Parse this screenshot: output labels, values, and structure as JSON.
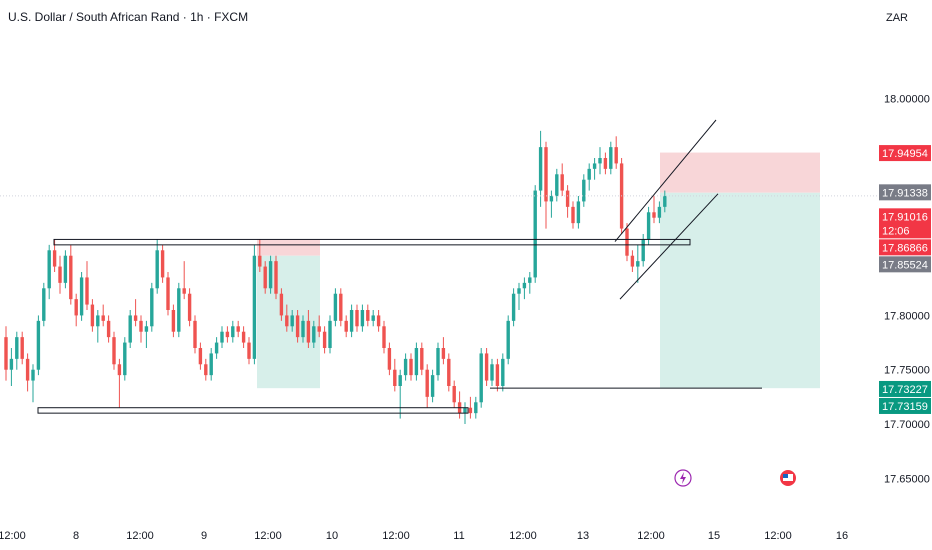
{
  "header": {
    "title": "U.S. Dollar / South African Rand · 1h · FXCM",
    "currency": "ZAR"
  },
  "colors": {
    "up": "#26a69a",
    "down": "#ef5350",
    "stop_zone": "#f8d6d8",
    "target_zone": "#d7efea",
    "red_tag": "#f23645",
    "green_tag": "#089981",
    "grey_tag": "#787b86"
  },
  "chart_data": {
    "type": "candlestick",
    "symbol": "USD/ZAR",
    "interval": "1h",
    "source": "FXCM",
    "ylim": [
      17.63,
      18.05
    ],
    "y_ticks": [
      "18.00000",
      "17.80000",
      "17.75000",
      "17.70000",
      "17.65000"
    ],
    "x_ticks": [
      "12:00",
      "8",
      "12:00",
      "9",
      "12:00",
      "10",
      "12:00",
      "11",
      "12:00",
      "13",
      "12:00",
      "15",
      "12:00",
      "16"
    ],
    "price_tags": [
      {
        "label": "17.94954",
        "value": 17.94954,
        "style": "red"
      },
      {
        "label": "17.91338",
        "value": 17.91338,
        "style": "grey"
      },
      {
        "label": "17.91016",
        "value": 17.91016,
        "style": "red",
        "countdown": "12:06"
      },
      {
        "label": "17.86866",
        "value": 17.86866,
        "style": "red"
      },
      {
        "label": "17.85524",
        "value": 17.85524,
        "style": "grey"
      },
      {
        "label": "17.73227",
        "value": 17.73227,
        "style": "green"
      },
      {
        "label": "17.73159",
        "value": 17.73159,
        "style": "green"
      }
    ],
    "support_zone": [
      17.71,
      17.715
    ],
    "resistance_zone": [
      17.865,
      17.87
    ],
    "horizontal_line": 17.733,
    "trade_1": {
      "entry": 17.855,
      "stop": 17.87,
      "target": 17.733
    },
    "trade_2": {
      "entry": 17.913,
      "stop": 17.95,
      "target": 17.733
    },
    "channel": {
      "upper": [
        17.865,
        17.95
      ],
      "lower": [
        17.83,
        17.915
      ]
    },
    "candles": [
      [
        17.78,
        17.79,
        17.74,
        17.75
      ],
      [
        17.75,
        17.77,
        17.735,
        17.76
      ],
      [
        17.76,
        17.785,
        17.75,
        17.78
      ],
      [
        17.78,
        17.785,
        17.755,
        17.76
      ],
      [
        17.76,
        17.765,
        17.73,
        17.74
      ],
      [
        17.74,
        17.755,
        17.72,
        17.75
      ],
      [
        17.75,
        17.8,
        17.745,
        17.795
      ],
      [
        17.795,
        17.83,
        17.79,
        17.825
      ],
      [
        17.825,
        17.865,
        17.815,
        17.86
      ],
      [
        17.86,
        17.87,
        17.84,
        17.845
      ],
      [
        17.845,
        17.855,
        17.82,
        17.83
      ],
      [
        17.83,
        17.86,
        17.825,
        17.855
      ],
      [
        17.855,
        17.865,
        17.81,
        17.815
      ],
      [
        17.815,
        17.82,
        17.79,
        17.8
      ],
      [
        17.8,
        17.84,
        17.795,
        17.835
      ],
      [
        17.835,
        17.85,
        17.805,
        17.81
      ],
      [
        17.81,
        17.815,
        17.785,
        17.79
      ],
      [
        17.79,
        17.805,
        17.775,
        17.8
      ],
      [
        17.8,
        17.81,
        17.79,
        17.795
      ],
      [
        17.795,
        17.8,
        17.775,
        17.78
      ],
      [
        17.78,
        17.785,
        17.75,
        17.755
      ],
      [
        17.755,
        17.76,
        17.715,
        17.745
      ],
      [
        17.745,
        17.78,
        17.74,
        17.775
      ],
      [
        17.775,
        17.805,
        17.77,
        17.8
      ],
      [
        17.8,
        17.815,
        17.79,
        17.795
      ],
      [
        17.795,
        17.8,
        17.775,
        17.785
      ],
      [
        17.785,
        17.795,
        17.77,
        17.79
      ],
      [
        17.79,
        17.83,
        17.785,
        17.825
      ],
      [
        17.825,
        17.87,
        17.82,
        17.86
      ],
      [
        17.86,
        17.865,
        17.83,
        17.835
      ],
      [
        17.835,
        17.84,
        17.8,
        17.805
      ],
      [
        17.805,
        17.81,
        17.78,
        17.785
      ],
      [
        17.785,
        17.83,
        17.78,
        17.825
      ],
      [
        17.825,
        17.85,
        17.815,
        17.82
      ],
      [
        17.82,
        17.825,
        17.79,
        17.795
      ],
      [
        17.795,
        17.8,
        17.765,
        17.77
      ],
      [
        17.77,
        17.775,
        17.75,
        17.755
      ],
      [
        17.755,
        17.76,
        17.74,
        17.745
      ],
      [
        17.745,
        17.77,
        17.74,
        17.765
      ],
      [
        17.765,
        17.78,
        17.76,
        17.775
      ],
      [
        17.775,
        17.79,
        17.77,
        17.785
      ],
      [
        17.785,
        17.79,
        17.775,
        17.78
      ],
      [
        17.78,
        17.795,
        17.775,
        17.79
      ],
      [
        17.79,
        17.795,
        17.78,
        17.785
      ],
      [
        17.785,
        17.79,
        17.77,
        17.775
      ],
      [
        17.775,
        17.78,
        17.755,
        17.76
      ],
      [
        17.76,
        17.865,
        17.755,
        17.855
      ],
      [
        17.855,
        17.87,
        17.84,
        17.845
      ],
      [
        17.845,
        17.85,
        17.82,
        17.825
      ],
      [
        17.825,
        17.855,
        17.82,
        17.85
      ],
      [
        17.85,
        17.855,
        17.815,
        17.82
      ],
      [
        17.82,
        17.825,
        17.795,
        17.8
      ],
      [
        17.8,
        17.81,
        17.785,
        17.79
      ],
      [
        17.79,
        17.805,
        17.785,
        17.8
      ],
      [
        17.8,
        17.805,
        17.775,
        17.78
      ],
      [
        17.78,
        17.8,
        17.775,
        17.795
      ],
      [
        17.795,
        17.805,
        17.77,
        17.775
      ],
      [
        17.775,
        17.795,
        17.77,
        17.79
      ],
      [
        17.79,
        17.8,
        17.78,
        17.785
      ],
      [
        17.785,
        17.79,
        17.765,
        17.77
      ],
      [
        17.77,
        17.8,
        17.765,
        17.795
      ],
      [
        17.795,
        17.825,
        17.79,
        17.82
      ],
      [
        17.82,
        17.825,
        17.79,
        17.795
      ],
      [
        17.795,
        17.8,
        17.78,
        17.785
      ],
      [
        17.785,
        17.81,
        17.78,
        17.805
      ],
      [
        17.805,
        17.81,
        17.785,
        17.79
      ],
      [
        17.79,
        17.81,
        17.785,
        17.805
      ],
      [
        17.805,
        17.81,
        17.79,
        17.795
      ],
      [
        17.795,
        17.805,
        17.79,
        17.8
      ],
      [
        17.8,
        17.805,
        17.785,
        17.79
      ],
      [
        17.79,
        17.795,
        17.765,
        17.77
      ],
      [
        17.77,
        17.775,
        17.745,
        17.75
      ],
      [
        17.75,
        17.76,
        17.73,
        17.735
      ],
      [
        17.735,
        17.75,
        17.705,
        17.745
      ],
      [
        17.745,
        17.765,
        17.74,
        17.76
      ],
      [
        17.76,
        17.765,
        17.74,
        17.745
      ],
      [
        17.745,
        17.775,
        17.74,
        17.77
      ],
      [
        17.77,
        17.775,
        17.745,
        17.75
      ],
      [
        17.75,
        17.755,
        17.715,
        17.725
      ],
      [
        17.725,
        17.75,
        17.72,
        17.745
      ],
      [
        17.745,
        17.775,
        17.74,
        17.77
      ],
      [
        17.77,
        17.78,
        17.755,
        17.76
      ],
      [
        17.76,
        17.765,
        17.73,
        17.735
      ],
      [
        17.735,
        17.74,
        17.715,
        17.72
      ],
      [
        17.72,
        17.73,
        17.705,
        17.71
      ],
      [
        17.71,
        17.72,
        17.7,
        17.715
      ],
      [
        17.715,
        17.725,
        17.705,
        17.71
      ],
      [
        17.71,
        17.725,
        17.705,
        17.72
      ],
      [
        17.72,
        17.77,
        17.715,
        17.765
      ],
      [
        17.765,
        17.77,
        17.735,
        17.74
      ],
      [
        17.74,
        17.76,
        17.735,
        17.755
      ],
      [
        17.755,
        17.76,
        17.73,
        17.735
      ],
      [
        17.735,
        17.765,
        17.73,
        17.76
      ],
      [
        17.76,
        17.8,
        17.755,
        17.795
      ],
      [
        17.795,
        17.825,
        17.79,
        17.82
      ],
      [
        17.82,
        17.83,
        17.805,
        17.825
      ],
      [
        17.825,
        17.835,
        17.815,
        17.83
      ],
      [
        17.83,
        17.84,
        17.82,
        17.835
      ],
      [
        17.835,
        17.92,
        17.83,
        17.915
      ],
      [
        17.915,
        17.97,
        17.9,
        17.955
      ],
      [
        17.955,
        17.96,
        17.88,
        17.905
      ],
      [
        17.905,
        17.915,
        17.89,
        17.91
      ],
      [
        17.91,
        17.935,
        17.905,
        17.93
      ],
      [
        17.93,
        17.94,
        17.91,
        17.915
      ],
      [
        17.915,
        17.92,
        17.89,
        17.9
      ],
      [
        17.9,
        17.905,
        17.88,
        17.885
      ],
      [
        17.885,
        17.91,
        17.88,
        17.905
      ],
      [
        17.905,
        17.93,
        17.9,
        17.925
      ],
      [
        17.925,
        17.94,
        17.915,
        17.935
      ],
      [
        17.935,
        17.945,
        17.925,
        17.94
      ],
      [
        17.94,
        17.955,
        17.93,
        17.945
      ],
      [
        17.945,
        17.95,
        17.93,
        17.935
      ],
      [
        17.935,
        17.96,
        17.93,
        17.955
      ],
      [
        17.955,
        17.965,
        17.935,
        17.94
      ],
      [
        17.94,
        17.945,
        17.875,
        17.88
      ],
      [
        17.88,
        17.885,
        17.85,
        17.855
      ],
      [
        17.855,
        17.86,
        17.84,
        17.845
      ],
      [
        17.845,
        17.865,
        17.83,
        17.85
      ],
      [
        17.85,
        17.875,
        17.845,
        17.87
      ],
      [
        17.87,
        17.9,
        17.865,
        17.895
      ],
      [
        17.895,
        17.91,
        17.885,
        17.89
      ],
      [
        17.89,
        17.905,
        17.885,
        17.9
      ],
      [
        17.9,
        17.915,
        17.895,
        17.91
      ]
    ]
  }
}
